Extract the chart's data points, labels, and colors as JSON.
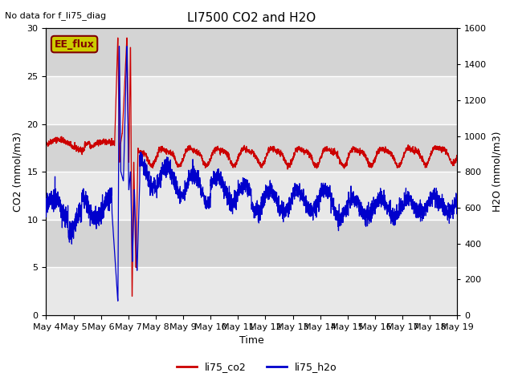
{
  "title": "LI7500 CO2 and H2O",
  "top_left_text": "No data for f_li75_diag",
  "ylabel_left": "CO2 (mmol/m3)",
  "ylabel_right": "H2O (mmol/m3)",
  "xlabel": "Time",
  "ylim_left": [
    0,
    30
  ],
  "ylim_right": [
    0,
    1600
  ],
  "yticks_left": [
    0,
    5,
    10,
    15,
    20,
    25,
    30
  ],
  "yticks_right": [
    0,
    200,
    400,
    600,
    800,
    1000,
    1200,
    1400,
    1600
  ],
  "xtick_labels": [
    "May 4",
    "May 5",
    "May 6",
    "May 7",
    "May 8",
    "May 9",
    "May 10",
    "May 11",
    "May 12",
    "May 13",
    "May 14",
    "May 15",
    "May 16",
    "May 17",
    "May 18",
    "May 19"
  ],
  "color_co2": "#cc0000",
  "color_h2o": "#0000cc",
  "bg_light": "#e8e8e8",
  "bg_dark": "#d0d0d0",
  "legend_label_co2": "li75_co2",
  "legend_label_h2o": "li75_h2o",
  "box_label": "EE_flux",
  "box_color": "#cccc00",
  "seed": 42
}
